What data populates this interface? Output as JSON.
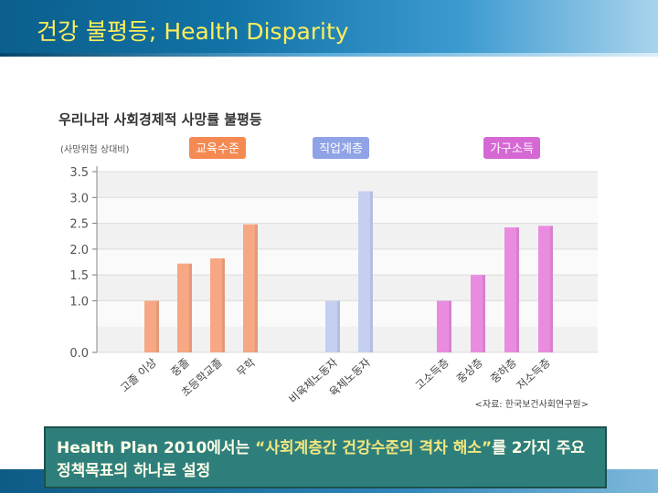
{
  "slide": {
    "title": "건강 불평등; Health Disparity"
  },
  "note": {
    "prefix": "Health Plan 2010에서는 ",
    "quote": "“사회계층간 건강수준의 격차 해소”",
    "suffix": "를 2가지 주요 정책목표의 하나로 설정"
  },
  "chart_data": {
    "type": "bar",
    "title": "우리나라 사회경제적 사망률 불평등",
    "ylabel": "(사망위험 상대비)",
    "xlabel": "",
    "ylim": [
      0,
      3.5
    ],
    "yticks": [
      "3.5",
      "3.0",
      "2.5",
      "2.0",
      "1.5",
      "1.0",
      "0.0"
    ],
    "ytick_values": [
      3.5,
      3.0,
      2.5,
      2.0,
      1.5,
      1.0,
      0.0
    ],
    "source": "<자료: 한국보건사회연구원>",
    "groups": [
      {
        "name": "교육수준",
        "color": "#f7a783",
        "header_color": "#f48a52",
        "categories": [
          "고졸 이상",
          "중졸",
          "초등학교졸",
          "무학"
        ],
        "values": [
          1.0,
          1.72,
          1.82,
          2.48
        ]
      },
      {
        "name": "직업계층",
        "color": "#c5cff2",
        "header_color": "#8fa3e6",
        "categories": [
          "비육체노동자",
          "육체노동자"
        ],
        "values": [
          1.0,
          3.12
        ]
      },
      {
        "name": "가구소득",
        "color": "#e98ce0",
        "header_color": "#d668d4",
        "categories": [
          "고소득층",
          "중상층",
          "중하층",
          "저소득층"
        ],
        "values": [
          1.0,
          1.5,
          2.42,
          2.45
        ]
      }
    ]
  }
}
